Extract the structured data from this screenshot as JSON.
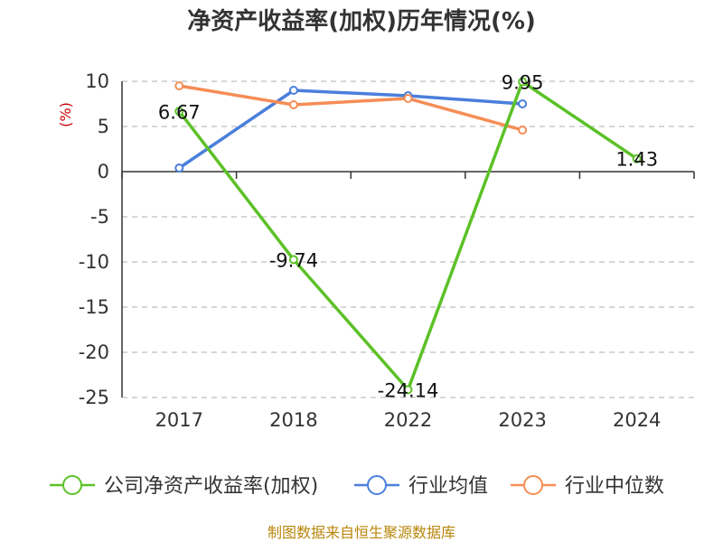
{
  "chart_data": {
    "type": "line",
    "title": "净资产收益率(加权)历年情况(%)",
    "ylabel": "(%)",
    "xlabel": "",
    "categories": [
      "2017",
      "2018",
      "2022",
      "2023",
      "2024"
    ],
    "ylim": [
      -25,
      10
    ],
    "yticks": [
      10,
      5,
      0,
      -5,
      -10,
      -15,
      -20,
      -25
    ],
    "grid": true,
    "legend_position": "bottom",
    "series": [
      {
        "name": "公司净资产收益率(加权)",
        "color": "#5cc127",
        "values": [
          6.67,
          -9.74,
          -24.14,
          9.95,
          1.43
        ],
        "show_labels": true
      },
      {
        "name": "行业均值",
        "color": "#4a7fdb",
        "values": [
          0.4,
          9.0,
          8.4,
          7.5,
          null
        ],
        "show_labels": false
      },
      {
        "name": "行业中位数",
        "color": "#f58d55",
        "values": [
          9.5,
          7.4,
          8.1,
          4.6,
          null
        ],
        "show_labels": false
      }
    ]
  },
  "footer": {
    "text": "制图数据来自恒生聚源数据库",
    "color": "#b8860b"
  },
  "colors": {
    "unit_label": "#cc0000",
    "axis": "#333333",
    "grid": "#c8c8c8"
  }
}
